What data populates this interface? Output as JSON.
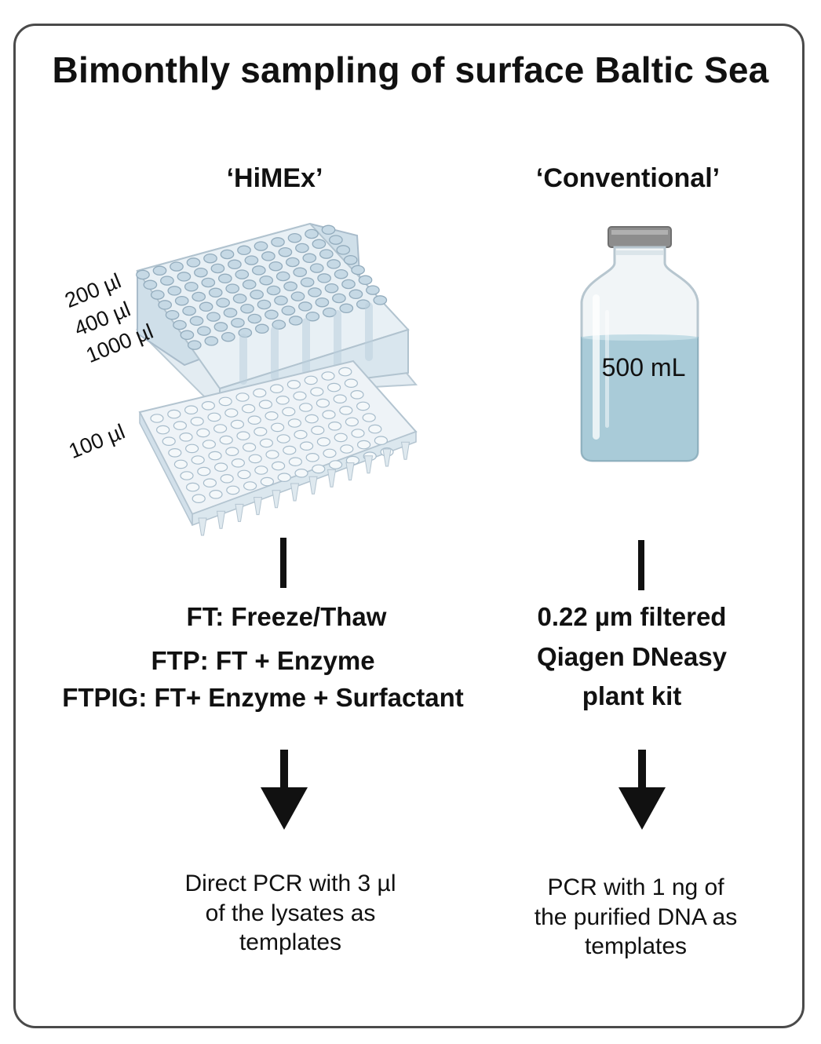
{
  "title": "Bimonthly sampling of surface Baltic Sea",
  "left": {
    "heading": "‘HiMEx’",
    "volumes": [
      "200 µl",
      "400 µl",
      "1000 µl",
      "100 µl"
    ],
    "methods": [
      "FT: Freeze/Thaw",
      "FTP: FT + Enzyme",
      "FTPIG: FT+ Enzyme + Surfactant"
    ],
    "outcome_lines": [
      "Direct PCR with 3 µl",
      "of the lysates as",
      "templates"
    ]
  },
  "right": {
    "heading": "‘Conventional’",
    "bottle_label": "500 mL",
    "methods": [
      "0.22 µm filtered",
      "Qiagen DNeasy",
      "plant kit"
    ],
    "outcome_lines": [
      "PCR with 1 ng of",
      "the purified DNA as",
      "templates"
    ]
  },
  "colors": {
    "frame": "#4a4a4a",
    "plate": "#d6e4ee",
    "liquid": "#a9cbd8",
    "text": "#111111"
  },
  "icons": [
    "deep-well-plate-icon",
    "pcr-plate-icon",
    "bottle-icon",
    "arrow-down-icon"
  ]
}
